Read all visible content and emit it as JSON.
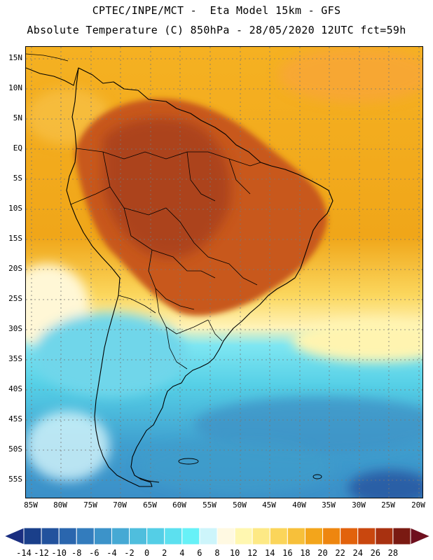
{
  "header": {
    "line1": "CPTEC/INPE/MCT -  Eta Model 15km - GFS",
    "line2": "Absolute Temperature (C) 850hPa - 28/05/2020 12UTC fct=59h"
  },
  "map": {
    "lat_labels": [
      "15N",
      "10N",
      "5N",
      "EQ",
      "5S",
      "10S",
      "15S",
      "20S",
      "25S",
      "30S",
      "35S",
      "40S",
      "45S",
      "50S",
      "55S"
    ],
    "lon_labels": [
      "85W",
      "80W",
      "75W",
      "70W",
      "65W",
      "60W",
      "55W",
      "50W",
      "45W",
      "40W",
      "35W",
      "30W",
      "25W",
      "20W"
    ]
  },
  "colorbar": {
    "labels": [
      "-14",
      "-12",
      "-10",
      "-8",
      "-6",
      "-4",
      "-2",
      "0",
      "2",
      "4",
      "6",
      "8",
      "10",
      "12",
      "14",
      "16",
      "18",
      "20",
      "22",
      "24",
      "26",
      "28"
    ],
    "colors": [
      "#1a3f8a",
      "#22529d",
      "#2a66ae",
      "#337cbd",
      "#3c93c9",
      "#46a9d4",
      "#4fbedd",
      "#54cee6",
      "#5ce0ef",
      "#67f1f7",
      "#cdf5fb",
      "#fff9e2",
      "#fff7b0",
      "#fde985",
      "#fbd55a",
      "#f7c03a",
      "#f3a51b",
      "#ee860f",
      "#e2620c",
      "#c9470e",
      "#a83110",
      "#7a1a12"
    ],
    "under_color": "#1a2e80",
    "over_color": "#6e0f1e"
  }
}
